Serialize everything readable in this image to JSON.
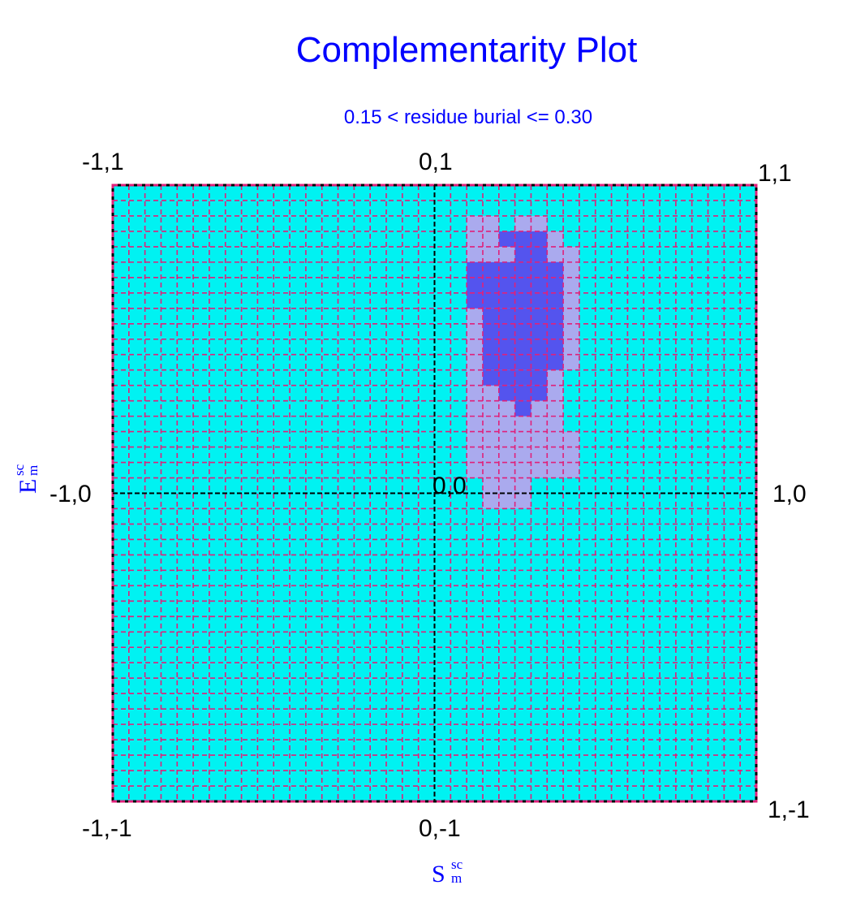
{
  "chart_data": {
    "type": "heatmap",
    "title": "Complementarity Plot",
    "subtitle": "0.15 < residue burial <= 0.30",
    "xlabel": {
      "main": "S",
      "sup": "sc",
      "sub": "m"
    },
    "ylabel": {
      "main": "E",
      "sup": "sc",
      "sub": "m"
    },
    "xlim": [
      -1,
      1
    ],
    "ylim": [
      -1,
      1
    ],
    "grid_cells": 40,
    "grid": true,
    "colors": {
      "background": "#00f2f2",
      "level1": "#aaaaee",
      "level2": "#5454ee",
      "grid": "#e0207a",
      "axes": "#000000"
    },
    "corner_labels": {
      "top_left": "-1,1",
      "top_center": "0,1",
      "top_right": "1,1",
      "mid_left": "-1,0",
      "center": "0,0",
      "mid_right": "1,0",
      "bottom_left": "-1,-1",
      "bottom_center": "0,-1",
      "bottom_right": "1,-1"
    },
    "regions": [
      {
        "level": 1,
        "x": [
          0.1,
          0.2
        ],
        "y": [
          0.85,
          0.9
        ]
      },
      {
        "level": 1,
        "x": [
          0.1,
          0.25
        ],
        "y": [
          0.75,
          0.85
        ]
      },
      {
        "level": 1,
        "x": [
          0.1,
          0.3
        ],
        "y": [
          0.05,
          0.75
        ]
      },
      {
        "level": 1,
        "x": [
          0.15,
          0.3
        ],
        "y": [
          -0.05,
          0.05
        ]
      },
      {
        "level": 1,
        "x": [
          0.25,
          0.35
        ],
        "y": [
          0.8,
          0.9
        ]
      },
      {
        "level": 1,
        "x": [
          0.35,
          0.4
        ],
        "y": [
          0.75,
          0.85
        ]
      },
      {
        "level": 1,
        "x": [
          0.3,
          0.45
        ],
        "y": [
          0.65,
          0.8
        ]
      },
      {
        "level": 1,
        "x": [
          0.4,
          0.45
        ],
        "y": [
          0.4,
          0.65
        ]
      },
      {
        "level": 1,
        "x": [
          0.3,
          0.4
        ],
        "y": [
          0.2,
          0.4
        ]
      },
      {
        "level": 1,
        "x": [
          0.3,
          0.45
        ],
        "y": [
          0.05,
          0.2
        ]
      },
      {
        "level": 2,
        "x": [
          0.2,
          0.25
        ],
        "y": [
          0.8,
          0.85
        ]
      },
      {
        "level": 2,
        "x": [
          0.25,
          0.35
        ],
        "y": [
          0.75,
          0.85
        ]
      },
      {
        "level": 2,
        "x": [
          0.35,
          0.4
        ],
        "y": [
          0.7,
          0.75
        ]
      },
      {
        "level": 2,
        "x": [
          0.1,
          0.4
        ],
        "y": [
          0.6,
          0.75
        ]
      },
      {
        "level": 2,
        "x": [
          0.15,
          0.4
        ],
        "y": [
          0.4,
          0.6
        ]
      },
      {
        "level": 2,
        "x": [
          0.15,
          0.35
        ],
        "y": [
          0.35,
          0.4
        ]
      },
      {
        "level": 2,
        "x": [
          0.2,
          0.35
        ],
        "y": [
          0.3,
          0.35
        ]
      },
      {
        "level": 2,
        "x": [
          0.25,
          0.3
        ],
        "y": [
          0.25,
          0.3
        ]
      }
    ]
  }
}
